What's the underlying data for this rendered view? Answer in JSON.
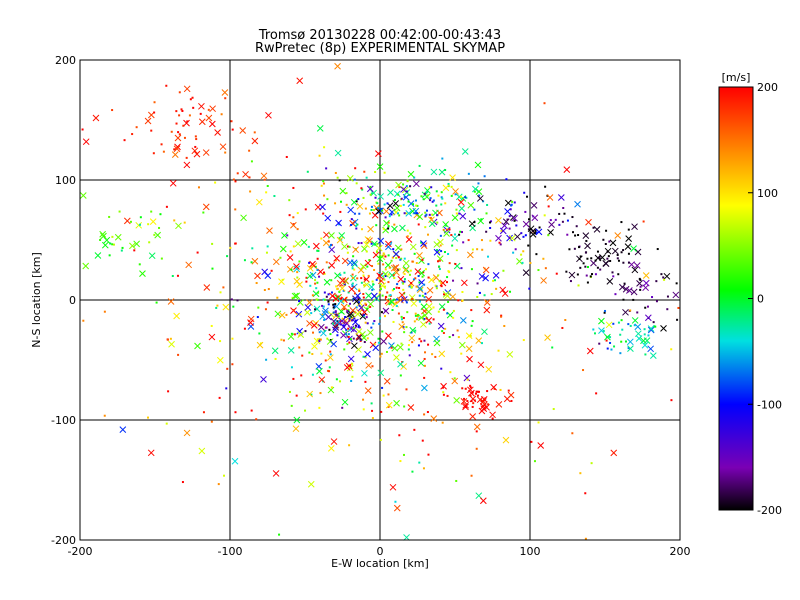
{
  "chart_data": {
    "type": "scatter",
    "title": "Tromsø 20130228 00:42:00-00:43:43",
    "subtitle": "RwPretec (8p) EXPERIMENTAL SKYMAP",
    "xlabel": "E-W location [km]",
    "ylabel": "N-S location [km]",
    "xlim": [
      -200,
      200
    ],
    "ylim": [
      -200,
      200
    ],
    "xticks": [
      -200,
      -100,
      0,
      100,
      200
    ],
    "yticks": [
      -200,
      -100,
      0,
      100,
      200
    ],
    "x_tick_labels": [
      "-200",
      "-100",
      "0",
      "100",
      "200"
    ],
    "y_tick_labels": [
      "-200",
      "-100",
      "0",
      "100",
      "200"
    ],
    "grid_lines": [
      -100,
      0,
      100
    ],
    "grid": true,
    "marker_types": [
      "dot",
      "cross"
    ],
    "colorbar": {
      "label": "[m/s]",
      "min": -200,
      "max": 200,
      "ticks": [
        -200,
        -100,
        0,
        100,
        200
      ],
      "tick_labels": [
        "-200",
        "-100",
        "0",
        "100",
        "200"
      ],
      "colormap": "rainbow (black-purple-blue-cyan-green-yellow-red)"
    },
    "clusters": [
      {
        "cx": -5,
        "cy": 10,
        "sx": 45,
        "sy": 40,
        "n": 700,
        "v": 60,
        "vs": 110
      },
      {
        "cx": 20,
        "cy": 80,
        "sx": 25,
        "sy": 15,
        "n": 160,
        "v": -20,
        "vs": 90
      },
      {
        "cx": -130,
        "cy": 140,
        "sx": 25,
        "sy": 20,
        "n": 70,
        "v": 185,
        "vs": 20
      },
      {
        "cx": -170,
        "cy": 55,
        "sx": 20,
        "sy": 15,
        "n": 35,
        "v": 30,
        "vs": 30
      },
      {
        "cx": 100,
        "cy": 65,
        "sx": 20,
        "sy": 12,
        "n": 70,
        "v": -170,
        "vs": 40
      },
      {
        "cx": 145,
        "cy": 35,
        "sx": 15,
        "sy": 12,
        "n": 70,
        "v": -195,
        "vs": 15
      },
      {
        "cx": 175,
        "cy": 5,
        "sx": 12,
        "sy": 15,
        "n": 40,
        "v": -190,
        "vs": 20
      },
      {
        "cx": 165,
        "cy": -30,
        "sx": 12,
        "sy": 10,
        "n": 45,
        "v": -30,
        "vs": 25
      },
      {
        "cx": 65,
        "cy": -82,
        "sx": 10,
        "sy": 6,
        "n": 45,
        "v": 200,
        "vs": 10
      },
      {
        "cx": -20,
        "cy": -15,
        "sx": 12,
        "sy": 12,
        "n": 90,
        "v": -130,
        "vs": 60
      },
      {
        "cx": 0,
        "cy": -30,
        "sx": 100,
        "sy": 80,
        "n": 300,
        "v": 140,
        "vs": 90
      }
    ]
  }
}
